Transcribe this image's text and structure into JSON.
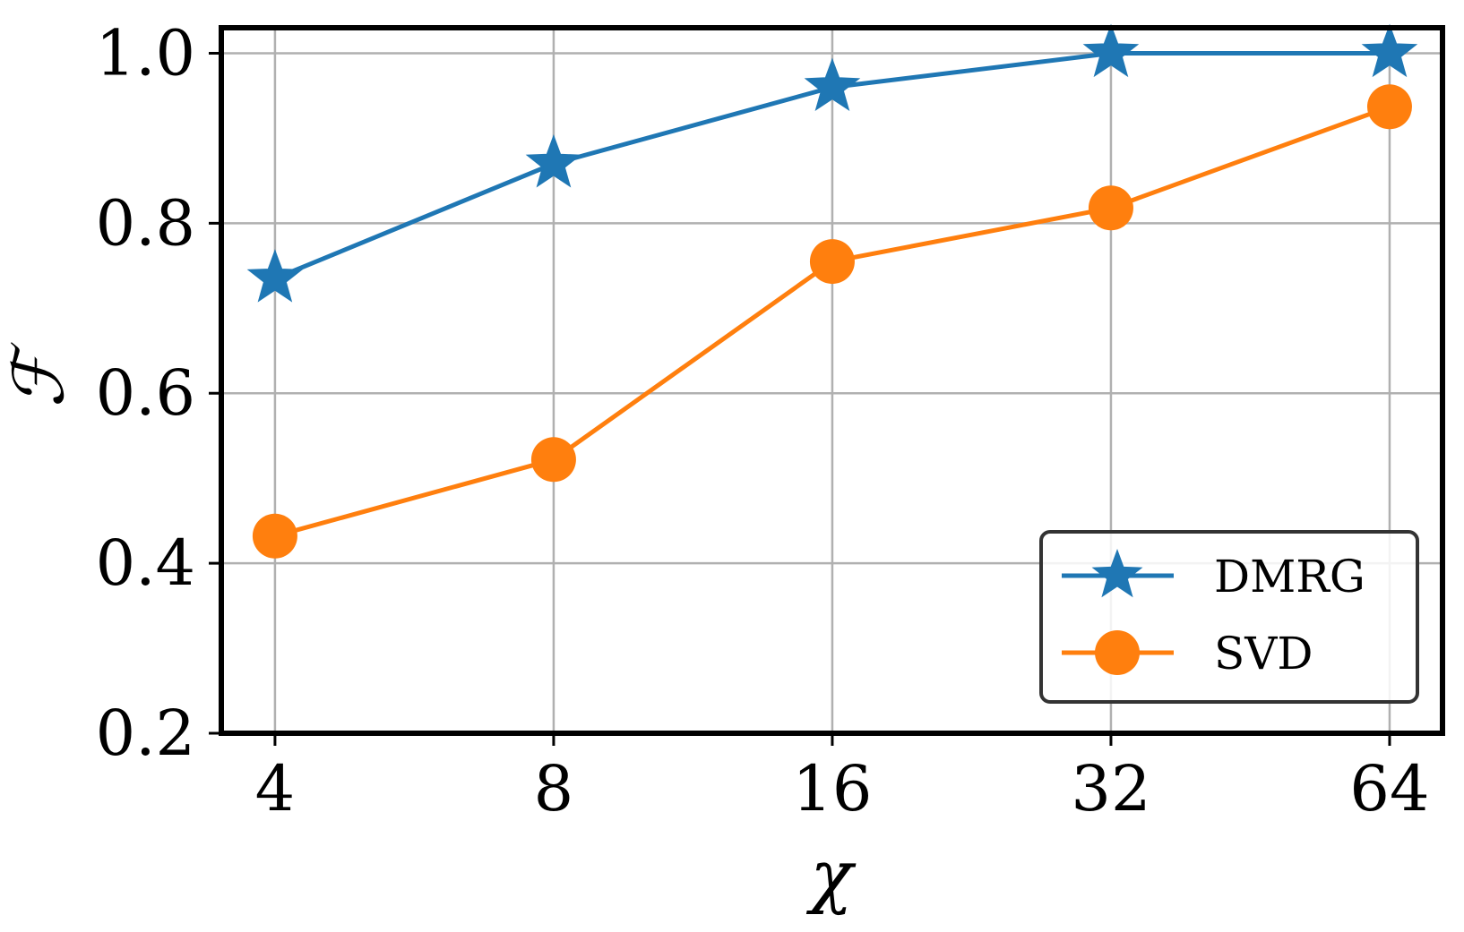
{
  "chart_data": {
    "type": "line",
    "xlabel": "χ",
    "ylabel": "ℱ",
    "x_scale": "log2",
    "categories": [
      "4",
      "8",
      "16",
      "32",
      "64"
    ],
    "x": [
      4,
      8,
      16,
      32,
      64
    ],
    "xlim": [
      3.5,
      73
    ],
    "ylim": [
      0.2,
      1.03
    ],
    "y_ticks": [
      "0.2",
      "0.4",
      "0.6",
      "0.8",
      "1.0"
    ],
    "y_tick_values": [
      0.2,
      0.4,
      0.6,
      0.8,
      1.0
    ],
    "grid": true,
    "legend_position": "bottom-right",
    "series": [
      {
        "name": "DMRG",
        "marker": "star",
        "color": "#1f77b4",
        "values": [
          0.735,
          0.87,
          0.96,
          1.0,
          1.0
        ]
      },
      {
        "name": "SVD",
        "marker": "circle",
        "color": "#ff7f0e",
        "values": [
          0.432,
          0.522,
          0.755,
          0.818,
          0.937
        ]
      }
    ]
  }
}
